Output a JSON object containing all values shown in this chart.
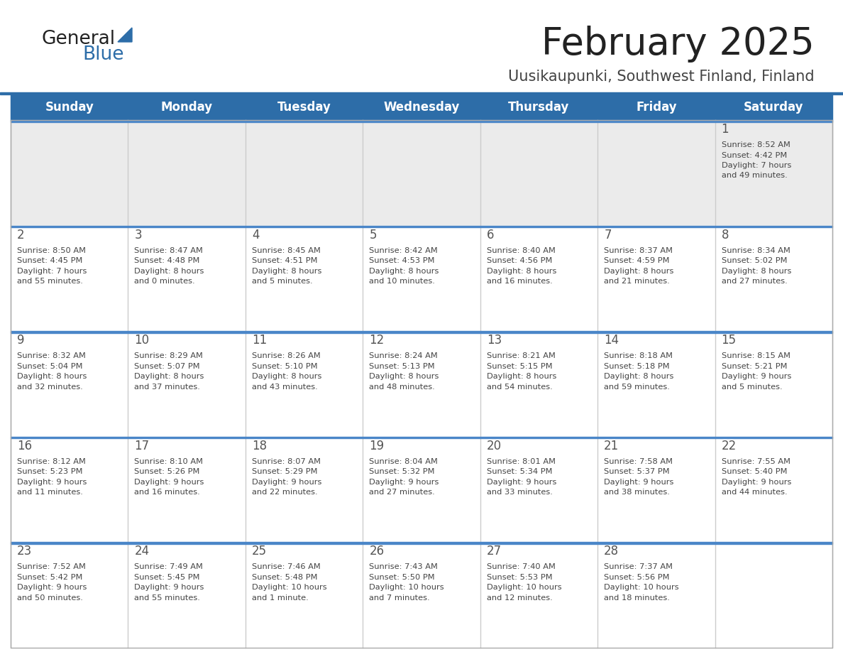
{
  "title": "February 2025",
  "subtitle": "Uusikaupunki, Southwest Finland, Finland",
  "days_of_week": [
    "Sunday",
    "Monday",
    "Tuesday",
    "Wednesday",
    "Thursday",
    "Friday",
    "Saturday"
  ],
  "header_bg": "#2D6DA8",
  "header_text": "#FFFFFF",
  "day_num_color": "#555555",
  "info_text_color": "#444444",
  "border_color": "#2D6DA8",
  "row_border_color": "#4A86C8",
  "title_color": "#222222",
  "subtitle_color": "#444444",
  "first_row_bg": "#EBEBEB",
  "cell_bg": "#FFFFFF",
  "logo_general_color": "#222222",
  "logo_blue_color": "#2D6DA8",
  "logo_triangle_color": "#2D6DA8",
  "calendar_data": [
    [
      {
        "day": null
      },
      {
        "day": null
      },
      {
        "day": null
      },
      {
        "day": null
      },
      {
        "day": null
      },
      {
        "day": null
      },
      {
        "day": 1,
        "sunrise": "8:52 AM",
        "sunset": "4:42 PM",
        "daylight": "7 hours\nand 49 minutes."
      }
    ],
    [
      {
        "day": 2,
        "sunrise": "8:50 AM",
        "sunset": "4:45 PM",
        "daylight": "7 hours\nand 55 minutes."
      },
      {
        "day": 3,
        "sunrise": "8:47 AM",
        "sunset": "4:48 PM",
        "daylight": "8 hours\nand 0 minutes."
      },
      {
        "day": 4,
        "sunrise": "8:45 AM",
        "sunset": "4:51 PM",
        "daylight": "8 hours\nand 5 minutes."
      },
      {
        "day": 5,
        "sunrise": "8:42 AM",
        "sunset": "4:53 PM",
        "daylight": "8 hours\nand 10 minutes."
      },
      {
        "day": 6,
        "sunrise": "8:40 AM",
        "sunset": "4:56 PM",
        "daylight": "8 hours\nand 16 minutes."
      },
      {
        "day": 7,
        "sunrise": "8:37 AM",
        "sunset": "4:59 PM",
        "daylight": "8 hours\nand 21 minutes."
      },
      {
        "day": 8,
        "sunrise": "8:34 AM",
        "sunset": "5:02 PM",
        "daylight": "8 hours\nand 27 minutes."
      }
    ],
    [
      {
        "day": 9,
        "sunrise": "8:32 AM",
        "sunset": "5:04 PM",
        "daylight": "8 hours\nand 32 minutes."
      },
      {
        "day": 10,
        "sunrise": "8:29 AM",
        "sunset": "5:07 PM",
        "daylight": "8 hours\nand 37 minutes."
      },
      {
        "day": 11,
        "sunrise": "8:26 AM",
        "sunset": "5:10 PM",
        "daylight": "8 hours\nand 43 minutes."
      },
      {
        "day": 12,
        "sunrise": "8:24 AM",
        "sunset": "5:13 PM",
        "daylight": "8 hours\nand 48 minutes."
      },
      {
        "day": 13,
        "sunrise": "8:21 AM",
        "sunset": "5:15 PM",
        "daylight": "8 hours\nand 54 minutes."
      },
      {
        "day": 14,
        "sunrise": "8:18 AM",
        "sunset": "5:18 PM",
        "daylight": "8 hours\nand 59 minutes."
      },
      {
        "day": 15,
        "sunrise": "8:15 AM",
        "sunset": "5:21 PM",
        "daylight": "9 hours\nand 5 minutes."
      }
    ],
    [
      {
        "day": 16,
        "sunrise": "8:12 AM",
        "sunset": "5:23 PM",
        "daylight": "9 hours\nand 11 minutes."
      },
      {
        "day": 17,
        "sunrise": "8:10 AM",
        "sunset": "5:26 PM",
        "daylight": "9 hours\nand 16 minutes."
      },
      {
        "day": 18,
        "sunrise": "8:07 AM",
        "sunset": "5:29 PM",
        "daylight": "9 hours\nand 22 minutes."
      },
      {
        "day": 19,
        "sunrise": "8:04 AM",
        "sunset": "5:32 PM",
        "daylight": "9 hours\nand 27 minutes."
      },
      {
        "day": 20,
        "sunrise": "8:01 AM",
        "sunset": "5:34 PM",
        "daylight": "9 hours\nand 33 minutes."
      },
      {
        "day": 21,
        "sunrise": "7:58 AM",
        "sunset": "5:37 PM",
        "daylight": "9 hours\nand 38 minutes."
      },
      {
        "day": 22,
        "sunrise": "7:55 AM",
        "sunset": "5:40 PM",
        "daylight": "9 hours\nand 44 minutes."
      }
    ],
    [
      {
        "day": 23,
        "sunrise": "7:52 AM",
        "sunset": "5:42 PM",
        "daylight": "9 hours\nand 50 minutes."
      },
      {
        "day": 24,
        "sunrise": "7:49 AM",
        "sunset": "5:45 PM",
        "daylight": "9 hours\nand 55 minutes."
      },
      {
        "day": 25,
        "sunrise": "7:46 AM",
        "sunset": "5:48 PM",
        "daylight": "10 hours\nand 1 minute."
      },
      {
        "day": 26,
        "sunrise": "7:43 AM",
        "sunset": "5:50 PM",
        "daylight": "10 hours\nand 7 minutes."
      },
      {
        "day": 27,
        "sunrise": "7:40 AM",
        "sunset": "5:53 PM",
        "daylight": "10 hours\nand 12 minutes."
      },
      {
        "day": 28,
        "sunrise": "7:37 AM",
        "sunset": "5:56 PM",
        "daylight": "10 hours\nand 18 minutes."
      },
      {
        "day": null
      }
    ]
  ]
}
